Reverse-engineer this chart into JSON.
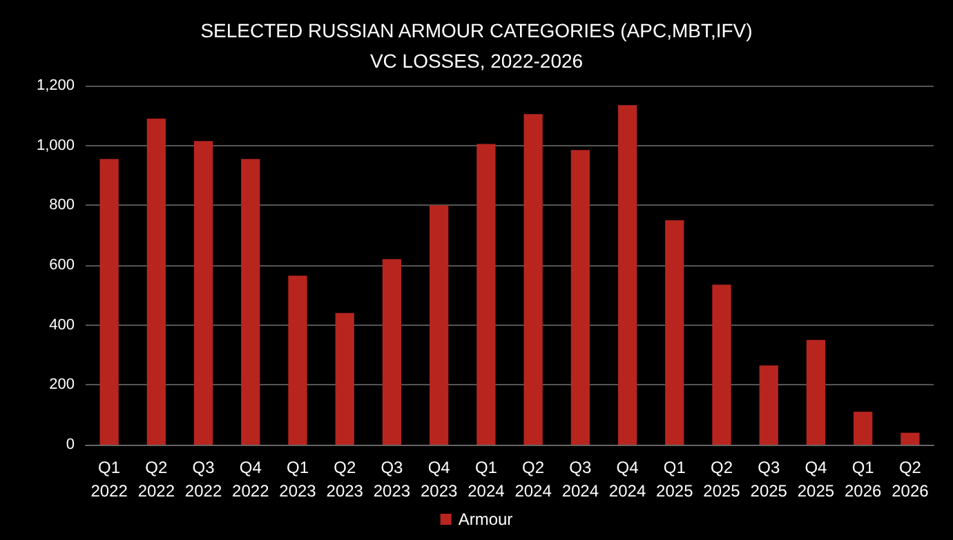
{
  "chart_data": {
    "type": "bar",
    "title": "SELECTED RUSSIAN ARMOUR CATEGORIES (APC,MBT,IFV)\nVC LOSSES, 2022-2026",
    "categories": [
      "Q1\n2022",
      "Q2\n2022",
      "Q3\n2022",
      "Q4\n2022",
      "Q1\n2023",
      "Q2\n2023",
      "Q3\n2023",
      "Q4\n2023",
      "Q1\n2024",
      "Q2\n2024",
      "Q3\n2024",
      "Q4\n2024",
      "Q1\n2025",
      "Q2\n2025",
      "Q3\n2025",
      "Q4\n2025",
      "Q1\n2026",
      "Q2\n2026"
    ],
    "series": [
      {
        "name": "Armour",
        "color": "#b8251f",
        "values": [
          955,
          1090,
          1015,
          955,
          565,
          440,
          620,
          800,
          1005,
          1105,
          985,
          1135,
          750,
          535,
          265,
          350,
          110,
          40
        ]
      }
    ],
    "ylim": [
      0,
      1200
    ],
    "yticks": [
      0,
      200,
      400,
      600,
      800,
      {
        "value": 1000,
        "label": "1,000"
      },
      {
        "value": 1200,
        "label": "1,200"
      }
    ],
    "grid": "y",
    "legend": "bottom"
  }
}
